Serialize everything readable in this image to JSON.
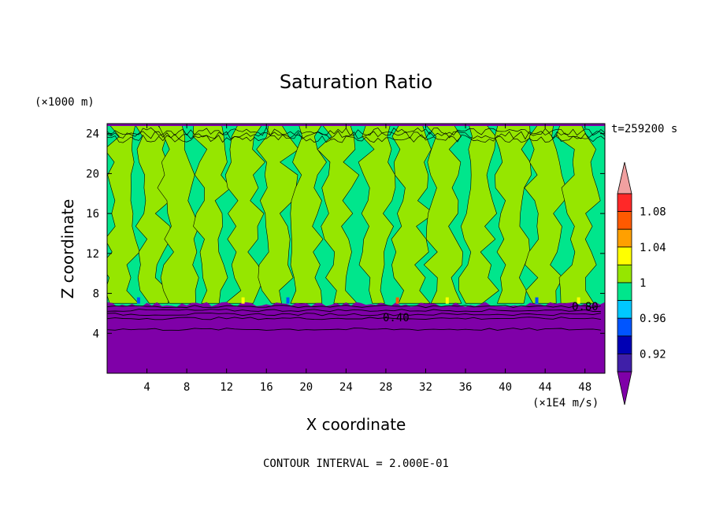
{
  "chart_data": {
    "type": "heatmap",
    "title": "Saturation Ratio",
    "xlabel": "X coordinate",
    "ylabel": "Z coordinate",
    "x_unit": "(×1E4 m/s)",
    "y_unit": "(×1000 m)",
    "time_label": "t=259200 s",
    "footer": "CONTOUR INTERVAL = 2.000E-01",
    "xlim": [
      0,
      50
    ],
    "ylim": [
      0,
      25
    ],
    "x_ticks": [
      "4",
      "8",
      "12",
      "16",
      "20",
      "24",
      "28",
      "32",
      "36",
      "40",
      "44",
      "48"
    ],
    "y_ticks": [
      "4",
      "8",
      "12",
      "16",
      "20",
      "24"
    ],
    "contour_labels": [
      "0.40",
      "0.80"
    ],
    "colorbar": {
      "levels": [
        {
          "color": "#7f00a8"
        },
        {
          "color": "#3f1fa8"
        },
        {
          "color": "#0000b4",
          "label": "0.92"
        },
        {
          "color": "#0055ff"
        },
        {
          "color": "#00c8ff",
          "label": "0.96"
        },
        {
          "color": "#00e68c"
        },
        {
          "color": "#96e600",
          "label": "1"
        },
        {
          "color": "#ffff00"
        },
        {
          "color": "#ffa000",
          "label": "1.04"
        },
        {
          "color": "#ff5a00"
        },
        {
          "color": "#ff2828",
          "label": "1.08"
        },
        {
          "color": "#f0a0a0"
        }
      ],
      "tick_labels": [
        "0.92",
        "0.96",
        "1",
        "1.04",
        "1.08"
      ]
    },
    "layers": [
      {
        "level": "< 0.40",
        "z_top": 4.4,
        "color": "#7f00a8"
      },
      {
        "level": "0.40–0.80",
        "z_top": 6.8,
        "color": "#7f00a8"
      },
      {
        "level": "0.96–1.00",
        "z_top": 25,
        "color": "#00e68c"
      },
      {
        "level": "1.00–1.02",
        "z_top": 25,
        "color": "#96e600"
      }
    ]
  }
}
